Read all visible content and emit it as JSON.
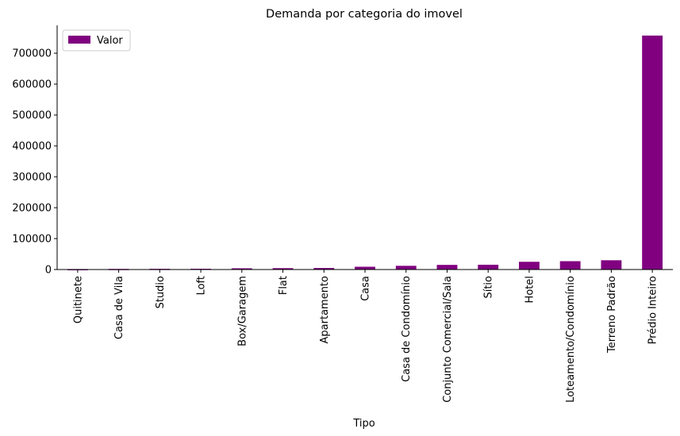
{
  "chart_data": {
    "type": "bar",
    "title": "Demanda por categoria do imovel",
    "xlabel": "Tipo",
    "ylabel": "",
    "categories": [
      "Quitinete",
      "Casa de Vila",
      "Studio",
      "Loft",
      "Box/Garagem",
      "Flat",
      "Apartamento",
      "Casa",
      "Casa de Condomínio",
      "Conjunto Comercial/Sala",
      "Sítio",
      "Hotel",
      "Loteamento/Condomínio",
      "Terreno Padrão",
      "Prédio Inteiro"
    ],
    "series": [
      {
        "name": "Valor",
        "values": [
          1500,
          2000,
          2300,
          2500,
          4000,
          4500,
          5000,
          9000,
          12000,
          15000,
          15500,
          25000,
          27000,
          30000,
          757000
        ]
      }
    ],
    "ylim": [
      0,
      790000
    ],
    "yticks": [
      0,
      100000,
      200000,
      300000,
      400000,
      500000,
      600000,
      700000
    ],
    "ytick_labels": [
      "0",
      "100000",
      "200000",
      "300000",
      "400000",
      "500000",
      "600000",
      "700000"
    ],
    "grid": false,
    "legend": "top-left",
    "colors": {
      "bar": "#800080",
      "axis": "#000000"
    }
  }
}
